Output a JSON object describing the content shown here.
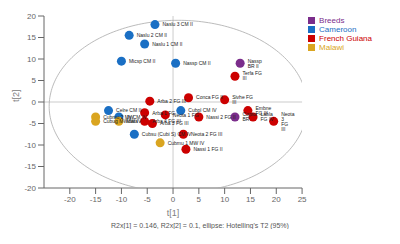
{
  "chart_data": {
    "type": "scatter",
    "xlabel": "t[1]",
    "ylabel": "t[2]",
    "footnote": "R2x[1] = 0.146, R2x[2] = 0.1, ellipse: Hotelling's T2 (95%)",
    "xlim": [
      -25,
      25
    ],
    "ylim": [
      -20,
      20
    ],
    "xticks": [
      -20,
      -15,
      -10,
      -5,
      0,
      5,
      10,
      15,
      20,
      25
    ],
    "yticks": [
      -20,
      -15,
      -10,
      -5,
      0,
      5,
      10,
      15,
      20
    ],
    "grid": false,
    "legend": "right",
    "data_labels": true,
    "reference_lines": {
      "x": [
        0
      ],
      "y": [
        0
      ],
      "color": "#aaaaaa"
    },
    "ellipse": {
      "center_x": 1.0,
      "center_y": -1.0,
      "width": 50,
      "height": 40,
      "angle": 0,
      "color": "#aaaaaa"
    },
    "series": [
      {
        "name": "Breeds",
        "color": "#7B2D8B",
        "labels": [
          "Nassp BR II",
          "Coptor BR"
        ],
        "x": [
          13.0,
          12.0
        ],
        "y": [
          9.0,
          -3.5
        ]
      },
      {
        "name": "Cameroon",
        "color": "#1a6fc4",
        "labels": [
          "Naslu 3 CM II",
          "Naslu 2 CM II",
          "Naslu 1 CM II",
          "Micsp CM II",
          "Nassp CM II",
          "Celre CM II",
          "Cubpl CM IV",
          "Js CM IV",
          "Cubsu (Cubi S) CM IV"
        ],
        "x": [
          -3.5,
          -8.5,
          -5.5,
          -10.0,
          0.5,
          -12.5,
          1.5,
          -10.5,
          -7.5
        ],
        "y": [
          18.0,
          15.5,
          13.5,
          9.5,
          9.0,
          -2.0,
          -2.0,
          -3.5,
          -7.5
        ]
      },
      {
        "name": "French Guiana",
        "color": "#cc0000",
        "labels": [
          "Terfa FG III",
          "Conca FG II",
          "Sivhe FG III",
          "Arba 2 FG III",
          "Arba 1 FG",
          "Embne FG III",
          "Neota 1 FG",
          "Nassi 2 FG II",
          "Labla FG IV",
          "Arba 4 FG III",
          "Arba 3 FG III",
          "Neota 3 FG III",
          "Neota 2 FG III",
          "Nassi 1 FG II"
        ],
        "x": [
          12.0,
          3.0,
          10.0,
          -4.5,
          -5.5,
          14.5,
          -1.5,
          5.0,
          15.5,
          -5.5,
          -4.0,
          19.5,
          2.0,
          2.5
        ],
        "y": [
          6.0,
          1.0,
          0.5,
          0.2,
          -2.5,
          -2.0,
          -3.0,
          -3.5,
          -3.5,
          -4.5,
          -5.0,
          -4.5,
          -7.5,
          -11.0
        ]
      },
      {
        "name": "Malawi",
        "color": "#DAA520",
        "labels": [
          "Cubmu 2 MW",
          "Cubug MWdata",
          "MW IV",
          "Cubmu 1 MW IV"
        ],
        "x": [
          -15.0,
          -15.0,
          -10.5,
          -2.5
        ],
        "y": [
          -3.5,
          -4.5,
          -4.5,
          -9.5
        ]
      }
    ]
  }
}
